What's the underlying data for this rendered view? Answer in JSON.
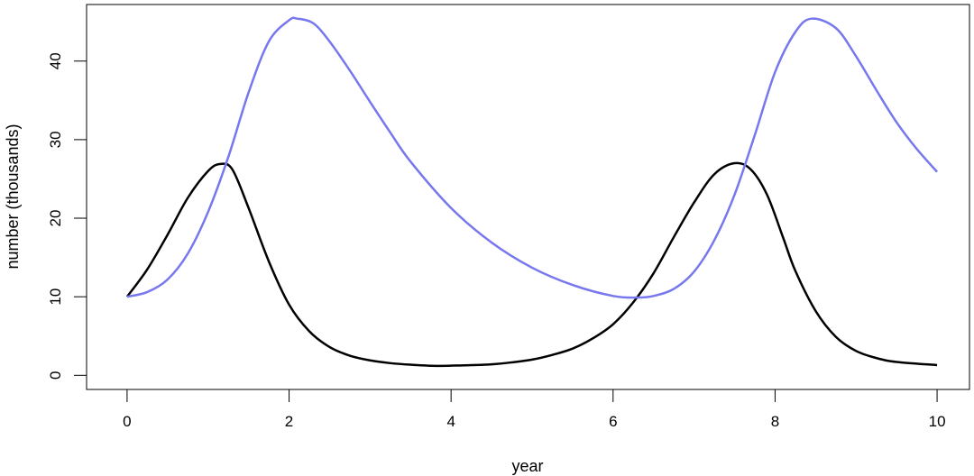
{
  "chart_data": {
    "type": "line",
    "title": "",
    "xlabel": "year",
    "ylabel": "number (thousands)",
    "xlim": [
      -0.5,
      10.4
    ],
    "ylim": [
      -1.8,
      47.2
    ],
    "x_ticks": [
      0,
      2,
      4,
      6,
      8,
      10
    ],
    "y_ticks": [
      0,
      10,
      20,
      30,
      40
    ],
    "x_tick_labels": [
      "0",
      "2",
      "4",
      "6",
      "8",
      "10"
    ],
    "y_tick_labels": [
      "0",
      "10",
      "20",
      "30",
      "40"
    ],
    "grid": false,
    "legend": "none",
    "series": [
      {
        "color": "#000000",
        "x": [
          0,
          0.25,
          0.5,
          0.75,
          1.0,
          1.15,
          1.3,
          1.5,
          1.75,
          2.0,
          2.25,
          2.5,
          2.75,
          3.0,
          3.25,
          3.5,
          3.85,
          4.25,
          4.5,
          4.75,
          5.0,
          5.25,
          5.5,
          5.75,
          6.0,
          6.25,
          6.5,
          6.75,
          7.0,
          7.25,
          7.5,
          7.7,
          7.9,
          8.1,
          8.25,
          8.5,
          8.75,
          9.0,
          9.25,
          9.5,
          10.0
        ],
        "y": [
          10.0,
          13.5,
          17.9,
          22.6,
          26.0,
          26.9,
          26.2,
          21.3,
          14.5,
          9.0,
          5.6,
          3.6,
          2.5,
          1.9,
          1.55,
          1.35,
          1.2,
          1.3,
          1.4,
          1.65,
          2.0,
          2.6,
          3.4,
          4.7,
          6.5,
          9.3,
          13.0,
          17.6,
          22.0,
          25.6,
          27.0,
          26.2,
          23.0,
          17.5,
          13.3,
          8.2,
          4.9,
          3.1,
          2.2,
          1.7,
          1.3
        ]
      },
      {
        "color": "#7777ee",
        "x": [
          0,
          0.25,
          0.5,
          0.75,
          1.0,
          1.25,
          1.5,
          1.75,
          2.0,
          2.1,
          2.3,
          2.5,
          2.75,
          3.0,
          3.25,
          3.5,
          4.0,
          4.5,
          5.0,
          5.5,
          6.0,
          6.3,
          6.5,
          6.75,
          7.0,
          7.25,
          7.5,
          7.75,
          8.0,
          8.25,
          8.45,
          8.75,
          9.0,
          9.25,
          9.5,
          9.75,
          10.0
        ],
        "y": [
          10.0,
          10.6,
          12.2,
          15.5,
          20.8,
          27.8,
          36.0,
          42.5,
          45.2,
          45.4,
          44.8,
          42.5,
          38.8,
          34.8,
          30.9,
          27.2,
          21.3,
          16.9,
          13.7,
          11.5,
          10.1,
          9.9,
          10.1,
          11.0,
          13.2,
          17.2,
          23.0,
          30.6,
          38.6,
          43.7,
          45.4,
          44.2,
          40.6,
          36.3,
          32.2,
          28.8,
          25.9
        ]
      }
    ]
  }
}
